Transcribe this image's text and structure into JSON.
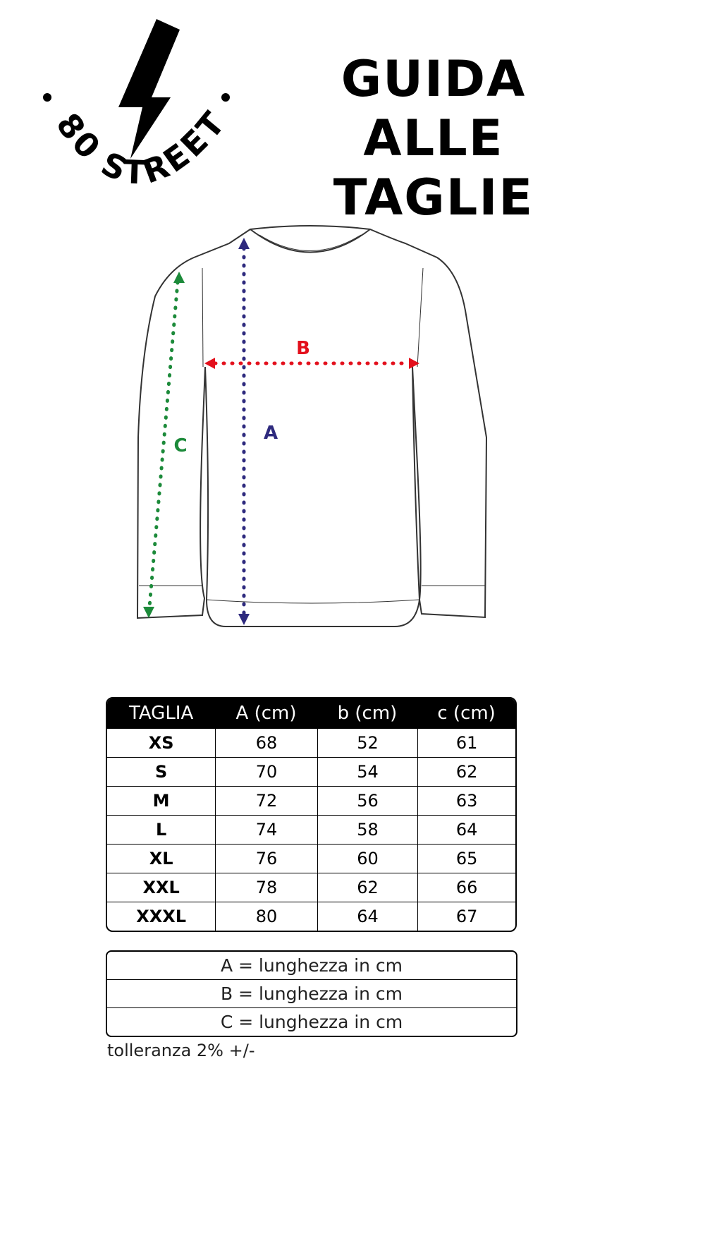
{
  "logo": {
    "text": "80 STREET",
    "icon": "lightning-bolt-icon"
  },
  "title": {
    "line1": "GUIDA ALLE",
    "line2": "TAGLIE"
  },
  "diagram": {
    "labels": {
      "a": "A",
      "b": "B",
      "c": "C"
    },
    "colors": {
      "a": "#2e2a7e",
      "b": "#e3101c",
      "c": "#1c8a3a"
    }
  },
  "table": {
    "headers": [
      "TAGLIA",
      "A (cm)",
      "b (cm)",
      "c (cm)"
    ],
    "rows": [
      [
        "XS",
        "68",
        "52",
        "61"
      ],
      [
        "S",
        "70",
        "54",
        "62"
      ],
      [
        "M",
        "72",
        "56",
        "63"
      ],
      [
        "L",
        "74",
        "58",
        "64"
      ],
      [
        "XL",
        "76",
        "60",
        "65"
      ],
      [
        "XXL",
        "78",
        "62",
        "66"
      ],
      [
        "XXXL",
        "80",
        "64",
        "67"
      ]
    ]
  },
  "legend": [
    "A = lunghezza in cm",
    "B = lunghezza in cm",
    "C = lunghezza in cm"
  ],
  "tolerance": "tolleranza  2% +/-"
}
